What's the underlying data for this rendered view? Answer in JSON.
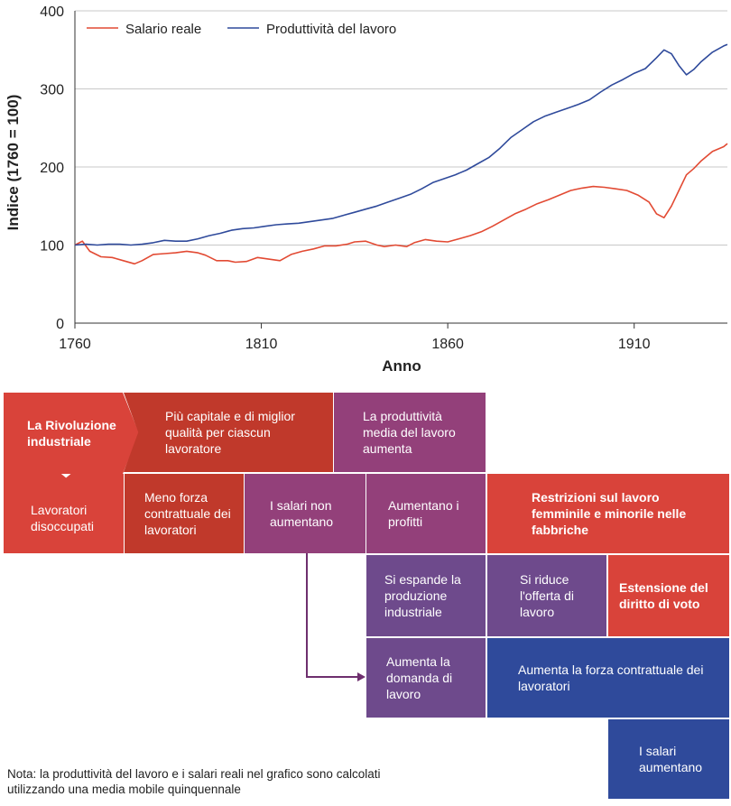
{
  "chart_data": {
    "type": "line",
    "xlabel": "Anno",
    "ylabel": "Indice (1760 = 100)",
    "xlim": [
      1760,
      1935
    ],
    "ylim": [
      0,
      400
    ],
    "xticks": [
      "1760",
      "1810",
      "1860",
      "1910"
    ],
    "yticks": [
      "0",
      "100",
      "200",
      "300",
      "400"
    ],
    "legend": "top-left",
    "grid": true,
    "series": [
      {
        "name": "Salario reale",
        "color": "#e24a33",
        "x": [
          1760,
          1762,
          1764,
          1767,
          1770,
          1773,
          1776,
          1778,
          1781,
          1784,
          1787,
          1790,
          1793,
          1795,
          1798,
          1801,
          1803,
          1806,
          1809,
          1812,
          1815,
          1818,
          1821,
          1824,
          1827,
          1830,
          1833,
          1835,
          1838,
          1841,
          1843,
          1846,
          1849,
          1851,
          1854,
          1857,
          1860,
          1863,
          1866,
          1869,
          1872,
          1875,
          1878,
          1881,
          1884,
          1887,
          1890,
          1893,
          1896,
          1899,
          1902,
          1905,
          1908,
          1911,
          1914,
          1916,
          1918,
          1920,
          1922,
          1924,
          1926,
          1928,
          1931,
          1934,
          1935
        ],
        "values": [
          100,
          105,
          92,
          85,
          84,
          80,
          76,
          80,
          88,
          89,
          90,
          92,
          90,
          87,
          80,
          80,
          78,
          79,
          84,
          82,
          80,
          88,
          92,
          95,
          99,
          99,
          101,
          104,
          105,
          100,
          98,
          100,
          98,
          103,
          107,
          105,
          104,
          108,
          112,
          117,
          124,
          132,
          140,
          146,
          153,
          158,
          164,
          170,
          173,
          175,
          174,
          172,
          170,
          164,
          155,
          140,
          135,
          150,
          170,
          190,
          198,
          208,
          220,
          226,
          230
        ]
      },
      {
        "name": "Produttività del lavoro",
        "color": "#2f4a9b",
        "x": [
          1760,
          1763,
          1766,
          1769,
          1772,
          1775,
          1778,
          1781,
          1784,
          1787,
          1790,
          1793,
          1796,
          1799,
          1802,
          1805,
          1808,
          1811,
          1814,
          1817,
          1820,
          1823,
          1826,
          1829,
          1832,
          1835,
          1838,
          1841,
          1844,
          1847,
          1850,
          1853,
          1856,
          1859,
          1862,
          1865,
          1868,
          1871,
          1874,
          1877,
          1880,
          1883,
          1886,
          1889,
          1892,
          1895,
          1898,
          1901,
          1904,
          1907,
          1910,
          1913,
          1916,
          1918,
          1920,
          1922,
          1924,
          1926,
          1928,
          1931,
          1934,
          1935
        ],
        "values": [
          100,
          101,
          100,
          101,
          101,
          100,
          101,
          103,
          106,
          105,
          105,
          108,
          112,
          115,
          119,
          121,
          122,
          124,
          126,
          127,
          128,
          130,
          132,
          134,
          138,
          142,
          146,
          150,
          155,
          160,
          165,
          172,
          180,
          185,
          190,
          196,
          204,
          212,
          224,
          238,
          248,
          258,
          265,
          270,
          275,
          280,
          286,
          296,
          305,
          312,
          320,
          326,
          340,
          350,
          345,
          330,
          318,
          325,
          335,
          347,
          355,
          357
        ]
      }
    ]
  },
  "flow": {
    "boxes": {
      "rivoluzione": "La Rivoluzione industriale",
      "capitale": "Più capitale e di miglior qualità per ciascun lavoratore",
      "produttivita": "La produttività media del lavoro aumenta",
      "disoccupati": "Lavoratori disoccupati",
      "meno_forza": "Meno forza contrattuale dei lavoratori",
      "salari_non": "I salari non aumentano",
      "profitti": "Aumentano i profitti",
      "restrizioni": "Restrizioni sul lavoro femminile e minorile nelle fabbriche",
      "espande": "Si espande la produzione industriale",
      "riduce": "Si riduce l'offerta di lavoro",
      "estensione": "Estensione del diritto di voto",
      "domanda": "Aumenta la domanda di lavoro",
      "forza": "Aumenta la forza contrattuale dei lavoratori",
      "salari_aumentano": "I salari aumentano"
    },
    "colors": {
      "red": "#d9433a",
      "darkred": "#c0392b",
      "purple": "#93407a",
      "violet": "#6e4a8c",
      "blue": "#2f4a9b"
    }
  },
  "note": "Nota: la produttività del lavoro e i salari reali nel grafico sono calcolati utilizzando una media mobile quinquennale"
}
